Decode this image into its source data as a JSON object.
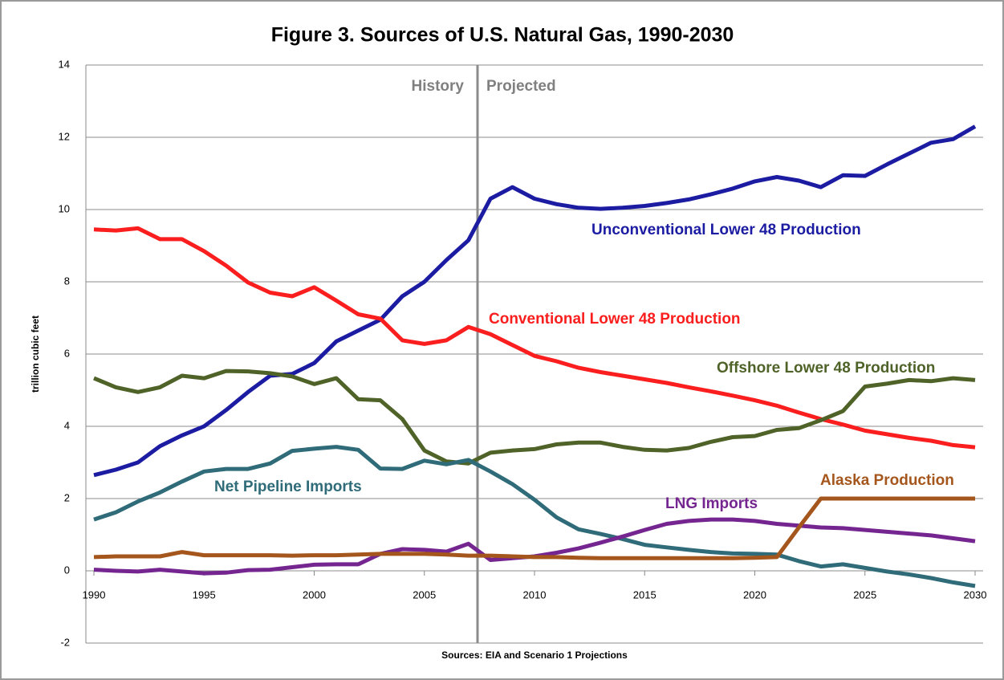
{
  "chart_data": {
    "type": "line",
    "title": "Figure 3. Sources of U.S. Natural Gas, 1990-2030",
    "ylabel": "trillion cubic feet",
    "source": "Sources: EIA and Scenario 1 Projections",
    "annotations": [
      "History",
      "Projected"
    ],
    "x": [
      1990,
      1991,
      1992,
      1993,
      1994,
      1995,
      1996,
      1997,
      1998,
      1999,
      2000,
      2001,
      2002,
      2003,
      2004,
      2005,
      2006,
      2007,
      2008,
      2009,
      2010,
      2011,
      2012,
      2013,
      2014,
      2015,
      2016,
      2017,
      2018,
      2019,
      2020,
      2021,
      2022,
      2023,
      2024,
      2025,
      2026,
      2027,
      2028,
      2029,
      2030
    ],
    "xlim": [
      1990,
      2030
    ],
    "xticks": [
      1990,
      1995,
      2000,
      2005,
      2010,
      2015,
      2020,
      2025,
      2030
    ],
    "ylim": [
      -2,
      14
    ],
    "yticks": [
      -2,
      0,
      2,
      4,
      6,
      8,
      10,
      12,
      14
    ],
    "grid": true,
    "series": [
      {
        "name": "Unconventional Lower 48 Production",
        "color": "#1c1ca3",
        "values": [
          2.65,
          2.8,
          3.0,
          3.45,
          3.75,
          4.0,
          4.45,
          4.95,
          5.4,
          5.45,
          5.75,
          6.35,
          6.65,
          6.95,
          7.6,
          8.0,
          8.6,
          9.15,
          10.3,
          10.62,
          10.3,
          10.15,
          10.05,
          10.02,
          10.05,
          10.1,
          10.18,
          10.28,
          10.42,
          10.58,
          10.78,
          10.9,
          10.8,
          10.62,
          10.95,
          10.93,
          11.25,
          11.55,
          11.85,
          11.95,
          12.3
        ]
      },
      {
        "name": "Conventional Lower 48 Production",
        "color": "#fb1e1e",
        "values": [
          9.45,
          9.42,
          9.48,
          9.18,
          9.18,
          8.85,
          8.45,
          7.98,
          7.7,
          7.6,
          7.85,
          7.48,
          7.1,
          6.98,
          6.38,
          6.28,
          6.38,
          6.75,
          6.55,
          6.25,
          5.95,
          5.8,
          5.62,
          5.5,
          5.4,
          5.3,
          5.2,
          5.08,
          4.97,
          4.85,
          4.72,
          4.57,
          4.38,
          4.2,
          4.05,
          3.88,
          3.78,
          3.68,
          3.6,
          3.48,
          3.42
        ]
      },
      {
        "name": "Offshore Lower 48 Production",
        "color": "#4f6228",
        "values": [
          5.33,
          5.08,
          4.95,
          5.08,
          5.4,
          5.33,
          5.53,
          5.52,
          5.47,
          5.38,
          5.17,
          5.33,
          4.75,
          4.72,
          4.2,
          3.33,
          3.03,
          2.97,
          3.27,
          3.33,
          3.37,
          3.5,
          3.55,
          3.55,
          3.43,
          3.35,
          3.33,
          3.4,
          3.57,
          3.7,
          3.73,
          3.9,
          3.95,
          4.17,
          4.42,
          5.1,
          5.18,
          5.28,
          5.25,
          5.33,
          5.28
        ]
      },
      {
        "name": "Net Pipeline Imports",
        "color": "#2f6b78",
        "values": [
          1.42,
          1.62,
          1.92,
          2.17,
          2.47,
          2.75,
          2.82,
          2.82,
          2.97,
          3.32,
          3.38,
          3.43,
          3.35,
          2.83,
          2.82,
          3.05,
          2.95,
          3.07,
          2.75,
          2.4,
          1.97,
          1.48,
          1.15,
          1.02,
          0.88,
          0.72,
          0.65,
          0.58,
          0.52,
          0.48,
          0.47,
          0.45,
          0.27,
          0.12,
          0.18,
          0.08,
          -0.02,
          -0.1,
          -0.2,
          -0.32,
          -0.42
        ]
      },
      {
        "name": "LNG Imports",
        "color": "#74258f",
        "values": [
          0.03,
          0.0,
          -0.02,
          0.03,
          -0.02,
          -0.07,
          -0.05,
          0.02,
          0.03,
          0.1,
          0.17,
          0.18,
          0.18,
          0.47,
          0.6,
          0.58,
          0.53,
          0.75,
          0.3,
          0.35,
          0.4,
          0.5,
          0.62,
          0.78,
          0.95,
          1.13,
          1.3,
          1.38,
          1.42,
          1.42,
          1.38,
          1.3,
          1.25,
          1.2,
          1.18,
          1.13,
          1.08,
          1.03,
          0.98,
          0.9,
          0.82
        ]
      },
      {
        "name": "Alaska Production",
        "color": "#a5561c",
        "values": [
          0.38,
          0.4,
          0.4,
          0.4,
          0.52,
          0.43,
          0.43,
          0.43,
          0.43,
          0.42,
          0.43,
          0.43,
          0.45,
          0.47,
          0.47,
          0.47,
          0.45,
          0.42,
          0.42,
          0.4,
          0.38,
          0.38,
          0.36,
          0.35,
          0.35,
          0.35,
          0.35,
          0.35,
          0.35,
          0.35,
          0.36,
          0.38,
          1.2,
          2.0,
          2.0,
          2.0,
          2.0,
          2.0,
          2.0,
          2.0,
          2.0
        ]
      }
    ]
  }
}
